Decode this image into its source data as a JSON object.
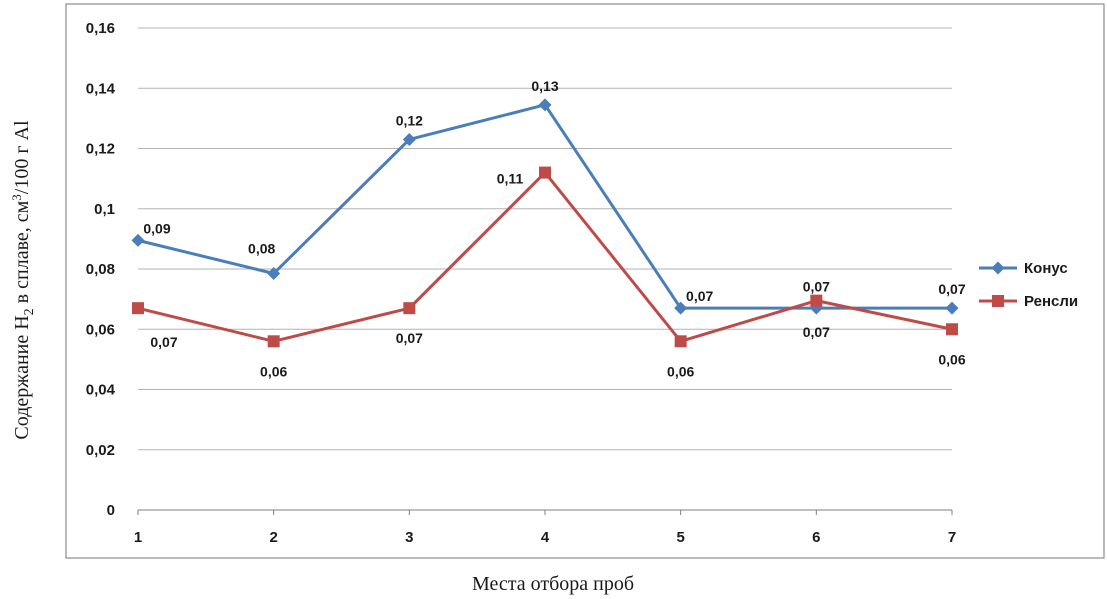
{
  "chart_data": {
    "type": "line",
    "x": [
      1,
      2,
      3,
      4,
      5,
      6,
      7
    ],
    "x_tick_labels": [
      "1",
      "2",
      "3",
      "4",
      "5",
      "6",
      "7"
    ],
    "ylim": [
      0,
      0.16
    ],
    "y_ticks": [
      0,
      0.02,
      0.04,
      0.06,
      0.08,
      0.1,
      0.12,
      0.14,
      0.16
    ],
    "y_tick_labels": [
      "0",
      "0,02",
      "0,04",
      "0,06",
      "0,08",
      "0,1",
      "0,12",
      "0,14",
      "0,16"
    ],
    "ylabel_main": "Содержание H",
    "ylabel_sub": "2",
    "ylabel_mid": " в сплаве, см",
    "ylabel_sup": "3",
    "ylabel_end": "/100 г Al",
    "xlabel": "Места отбора проб",
    "grid": true,
    "legend_position": "right",
    "series": [
      {
        "name": "Конус",
        "color": "#4a7ebb",
        "marker": "diamond",
        "values": [
          0.0895,
          0.0785,
          0.123,
          0.1345,
          0.067,
          0.067,
          0.067
        ],
        "labels": [
          "0,09",
          "0,08",
          "0,12",
          "0,13",
          "0,07",
          "0,07",
          "0,07"
        ]
      },
      {
        "name": "Ренсли",
        "color": "#be4b48",
        "marker": "square",
        "values": [
          0.067,
          0.056,
          0.067,
          0.112,
          0.056,
          0.0695,
          0.06
        ],
        "labels": [
          "0,07",
          "0,06",
          "0,07",
          "0,11",
          "0,06",
          "0,07",
          "0,06"
        ]
      }
    ]
  }
}
